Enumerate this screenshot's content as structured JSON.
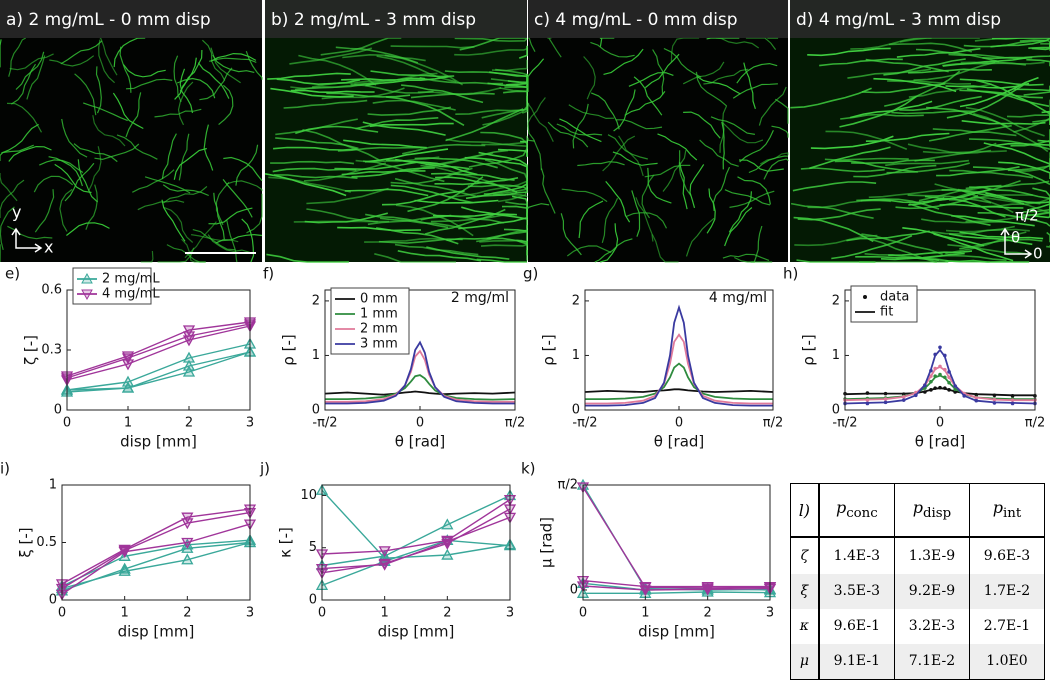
{
  "images": [
    {
      "label": "a) 2 mg/mL - 0 mm disp"
    },
    {
      "label": "b) 2 mg/mL - 3 mm disp"
    },
    {
      "label": "c) 4 mg/mL - 0 mm disp"
    },
    {
      "label": "d) 4 mg/mL - 3 mm disp"
    }
  ],
  "image_axes": {
    "y": "y",
    "x": "x",
    "theta_top": "π/2",
    "theta": "θ",
    "theta_zero": "0"
  },
  "chart_data": [
    {
      "type": "line",
      "panel": "e)",
      "ylabel": "ζ [-]",
      "xlabel": "disp [mm]",
      "legend": true,
      "x": [
        0,
        1,
        2,
        3
      ],
      "xlim": [
        0,
        3
      ],
      "xticks": [
        0,
        1,
        2,
        3
      ],
      "ylim": [
        0,
        0.6
      ],
      "yticks": [
        0,
        0.3,
        0.6
      ],
      "series": [
        {
          "name": "2 mg/mL",
          "color": "#3aa89a",
          "marker": "triangle-up",
          "replicates": [
            [
              0.1,
              0.14,
              0.26,
              0.33
            ],
            [
              0.09,
              0.11,
              0.22,
              0.29
            ],
            [
              0.1,
              0.11,
              0.19,
              0.29
            ]
          ]
        },
        {
          "name": "4 mg/mL",
          "color": "#a0359a",
          "marker": "triangle-down",
          "replicates": [
            [
              0.17,
              0.27,
              0.4,
              0.44
            ],
            [
              0.16,
              0.26,
              0.37,
              0.43
            ],
            [
              0.15,
              0.23,
              0.35,
              0.42
            ]
          ]
        }
      ]
    },
    {
      "type": "line",
      "panel": "f)",
      "ylabel": "ρ [-]",
      "xlabel": "θ [rad]",
      "annotation": "2 mg/ml",
      "legend": true,
      "x": [
        -1.57,
        -1.2,
        -0.9,
        -0.6,
        -0.4,
        -0.25,
        -0.15,
        -0.08,
        0,
        0.08,
        0.15,
        0.25,
        0.4,
        0.6,
        0.9,
        1.2,
        1.57
      ],
      "xlim": [
        -1.5708,
        1.5708
      ],
      "xticks": [
        {
          "value": -1.5708,
          "label": "-π/2"
        },
        0,
        {
          "value": 1.5708,
          "label": "π/2"
        }
      ],
      "ylim": [
        0,
        2.2
      ],
      "yticks": [
        0,
        1,
        2
      ],
      "series": [
        {
          "name": "0 mm",
          "color": "#111111",
          "values": [
            0.3,
            0.32,
            0.3,
            0.28,
            0.3,
            0.32,
            0.33,
            0.34,
            0.33,
            0.32,
            0.31,
            0.3,
            0.29,
            0.3,
            0.31,
            0.3,
            0.32
          ]
        },
        {
          "name": "1 mm",
          "color": "#2e8b3e",
          "values": [
            0.2,
            0.2,
            0.21,
            0.24,
            0.3,
            0.4,
            0.52,
            0.62,
            0.64,
            0.58,
            0.48,
            0.36,
            0.27,
            0.22,
            0.2,
            0.19,
            0.2
          ]
        },
        {
          "name": "2 mm",
          "color": "#e07a9a",
          "values": [
            0.15,
            0.15,
            0.16,
            0.2,
            0.28,
            0.45,
            0.7,
            0.98,
            1.08,
            0.92,
            0.65,
            0.42,
            0.26,
            0.19,
            0.16,
            0.15,
            0.15
          ]
        },
        {
          "name": "3 mm",
          "color": "#3a3aa0",
          "values": [
            0.12,
            0.12,
            0.13,
            0.17,
            0.26,
            0.45,
            0.75,
            1.1,
            1.24,
            1.05,
            0.7,
            0.42,
            0.24,
            0.16,
            0.13,
            0.12,
            0.12
          ]
        }
      ]
    },
    {
      "type": "line",
      "panel": "g)",
      "ylabel": "ρ [-]",
      "xlabel": "θ [rad]",
      "annotation": "4 mg/ml",
      "legend": false,
      "x": [
        -1.57,
        -1.2,
        -0.9,
        -0.6,
        -0.4,
        -0.25,
        -0.15,
        -0.08,
        0,
        0.08,
        0.15,
        0.25,
        0.4,
        0.6,
        0.9,
        1.2,
        1.57
      ],
      "xlim": [
        -1.5708,
        1.5708
      ],
      "xticks": [
        {
          "value": -1.5708,
          "label": "-π/2"
        },
        0,
        {
          "value": 1.5708,
          "label": "π/2"
        }
      ],
      "ylim": [
        0,
        2.2
      ],
      "yticks": [
        0,
        1,
        2
      ],
      "series": [
        {
          "color": "#111111",
          "values": [
            0.33,
            0.35,
            0.34,
            0.33,
            0.35,
            0.36,
            0.37,
            0.38,
            0.38,
            0.37,
            0.36,
            0.35,
            0.34,
            0.33,
            0.34,
            0.35,
            0.33
          ]
        },
        {
          "color": "#2e8b3e",
          "values": [
            0.2,
            0.2,
            0.21,
            0.24,
            0.3,
            0.42,
            0.6,
            0.78,
            0.85,
            0.78,
            0.6,
            0.42,
            0.3,
            0.24,
            0.21,
            0.2,
            0.2
          ]
        },
        {
          "color": "#e07a9a",
          "values": [
            0.12,
            0.12,
            0.13,
            0.17,
            0.26,
            0.48,
            0.85,
            1.25,
            1.38,
            1.25,
            0.85,
            0.48,
            0.26,
            0.17,
            0.13,
            0.12,
            0.12
          ]
        },
        {
          "color": "#3a3aa0",
          "values": [
            0.08,
            0.08,
            0.09,
            0.13,
            0.22,
            0.5,
            1.0,
            1.6,
            1.88,
            1.6,
            1.0,
            0.5,
            0.22,
            0.13,
            0.09,
            0.08,
            0.08
          ]
        }
      ]
    },
    {
      "type": "fit",
      "panel": "h)",
      "ylabel": "ρ [-]",
      "xlabel": "θ [rad]",
      "legend_entries": [
        "data",
        "fit"
      ],
      "x": [
        -1.57,
        -1.2,
        -0.9,
        -0.6,
        -0.4,
        -0.25,
        -0.15,
        -0.08,
        0,
        0.08,
        0.15,
        0.25,
        0.4,
        0.6,
        0.9,
        1.2,
        1.57
      ],
      "xlim": [
        -1.5708,
        1.5708
      ],
      "xticks": [
        {
          "value": -1.5708,
          "label": "-π/2"
        },
        0,
        {
          "value": 1.5708,
          "label": "π/2"
        }
      ],
      "ylim": [
        0,
        2.2
      ],
      "yticks": [
        0,
        1,
        2
      ],
      "curves": [
        {
          "color": "#111111",
          "data": [
            0.3,
            0.31,
            0.3,
            0.29,
            0.3,
            0.33,
            0.37,
            0.4,
            0.41,
            0.4,
            0.37,
            0.33,
            0.3,
            0.28,
            0.27,
            0.26,
            0.26
          ],
          "fit": [
            0.29,
            0.3,
            0.3,
            0.3,
            0.31,
            0.34,
            0.37,
            0.39,
            0.4,
            0.39,
            0.37,
            0.34,
            0.31,
            0.29,
            0.28,
            0.27,
            0.27
          ]
        },
        {
          "color": "#2e8b3e",
          "data": [
            0.2,
            0.21,
            0.22,
            0.25,
            0.3,
            0.4,
            0.52,
            0.62,
            0.65,
            0.6,
            0.5,
            0.38,
            0.28,
            0.23,
            0.2,
            0.2,
            0.19
          ],
          "fit": [
            0.2,
            0.21,
            0.22,
            0.25,
            0.31,
            0.4,
            0.51,
            0.6,
            0.63,
            0.59,
            0.5,
            0.39,
            0.29,
            0.23,
            0.21,
            0.2,
            0.2
          ]
        },
        {
          "color": "#e07a9a",
          "data": [
            0.18,
            0.18,
            0.2,
            0.24,
            0.32,
            0.46,
            0.62,
            0.76,
            0.8,
            0.74,
            0.6,
            0.44,
            0.3,
            0.22,
            0.19,
            0.18,
            0.18
          ],
          "fit": [
            0.18,
            0.19,
            0.2,
            0.24,
            0.31,
            0.45,
            0.62,
            0.75,
            0.79,
            0.73,
            0.6,
            0.44,
            0.3,
            0.23,
            0.19,
            0.18,
            0.18
          ]
        },
        {
          "color": "#3a3aa0",
          "data": [
            0.12,
            0.12,
            0.14,
            0.18,
            0.27,
            0.45,
            0.72,
            1.02,
            1.15,
            1.0,
            0.7,
            0.44,
            0.26,
            0.17,
            0.13,
            0.12,
            0.12
          ],
          "fit": [
            0.12,
            0.13,
            0.14,
            0.18,
            0.27,
            0.46,
            0.74,
            1.0,
            1.1,
            0.98,
            0.72,
            0.45,
            0.26,
            0.17,
            0.14,
            0.13,
            0.12
          ]
        }
      ]
    },
    {
      "type": "line",
      "panel": "i)",
      "ylabel": "ξ [-]",
      "xlabel": "disp [mm]",
      "legend": false,
      "x": [
        0,
        1,
        2,
        3
      ],
      "xlim": [
        0,
        3
      ],
      "xticks": [
        0,
        1,
        2,
        3
      ],
      "ylim": [
        0,
        1
      ],
      "yticks": [
        0,
        0.5,
        1
      ],
      "series": [
        {
          "color": "#3aa89a",
          "marker": "triangle-up",
          "replicates": [
            [
              0.1,
              0.25,
              0.35,
              0.5
            ],
            [
              0.08,
              0.27,
              0.45,
              0.5
            ],
            [
              0.12,
              0.38,
              0.48,
              0.52
            ]
          ]
        },
        {
          "color": "#a0359a",
          "marker": "triangle-down",
          "replicates": [
            [
              0.05,
              0.42,
              0.5,
              0.66
            ],
            [
              0.1,
              0.43,
              0.67,
              0.76
            ],
            [
              0.14,
              0.44,
              0.72,
              0.79
            ]
          ]
        }
      ]
    },
    {
      "type": "line",
      "panel": "j)",
      "ylabel": "κ [-]",
      "xlabel": "disp [mm]",
      "legend": false,
      "x": [
        0,
        1,
        2,
        3
      ],
      "xlim": [
        0,
        3
      ],
      "xticks": [
        0,
        1,
        2,
        3
      ],
      "ylim": [
        0,
        11
      ],
      "yticks": [
        0,
        5,
        10
      ],
      "series": [
        {
          "color": "#3aa89a",
          "marker": "triangle-up",
          "replicates": [
            [
              10.5,
              4.0,
              4.3,
              5.3
            ],
            [
              3.3,
              4.2,
              7.2,
              10.0
            ],
            [
              1.4,
              3.7,
              5.7,
              5.2
            ]
          ]
        },
        {
          "color": "#a0359a",
          "marker": "triangle-down",
          "replicates": [
            [
              4.4,
              4.7,
              5.7,
              9.6
            ],
            [
              2.6,
              3.5,
              5.4,
              8.7
            ],
            [
              3.0,
              3.4,
              5.6,
              7.9
            ]
          ]
        }
      ]
    },
    {
      "type": "line",
      "panel": "k)",
      "ylabel": "μ [rad]",
      "xlabel": "disp [mm]",
      "legend": false,
      "x": [
        0,
        1,
        2,
        3
      ],
      "xlim": [
        0,
        3
      ],
      "xticks": [
        0,
        1,
        2,
        3
      ],
      "ylim": [
        -0.15,
        1.5708
      ],
      "yticks": [
        0,
        {
          "value": 1.5708,
          "label": "π/2"
        }
      ],
      "series": [
        {
          "color": "#3aa89a",
          "marker": "triangle-up",
          "replicates": [
            [
              1.57,
              0.02,
              0.0,
              0.01
            ],
            [
              0.1,
              0.0,
              0.02,
              0.0
            ],
            [
              -0.05,
              -0.05,
              -0.03,
              -0.04
            ]
          ]
        },
        {
          "color": "#a0359a",
          "marker": "triangle-down",
          "replicates": [
            [
              1.54,
              0.04,
              0.03,
              0.04
            ],
            [
              0.14,
              0.05,
              0.05,
              0.05
            ],
            [
              0.06,
              0.0,
              0.01,
              0.02
            ]
          ]
        }
      ]
    }
  ],
  "table": {
    "label": "l)",
    "header": [
      {
        "base": "p",
        "sub": "conc"
      },
      {
        "base": "p",
        "sub": "disp"
      },
      {
        "base": "p",
        "sub": "int"
      }
    ],
    "rows": [
      [
        "ζ",
        "1.4E-3",
        "1.3E-9",
        "9.6E-3"
      ],
      [
        "ξ",
        "3.5E-3",
        "9.2E-9",
        "1.7E-2"
      ],
      [
        "κ",
        "9.6E-1",
        "3.2E-3",
        "2.7E-1"
      ],
      [
        "μ",
        "9.1E-1",
        "7.1E-2",
        "1.0E0"
      ]
    ]
  }
}
